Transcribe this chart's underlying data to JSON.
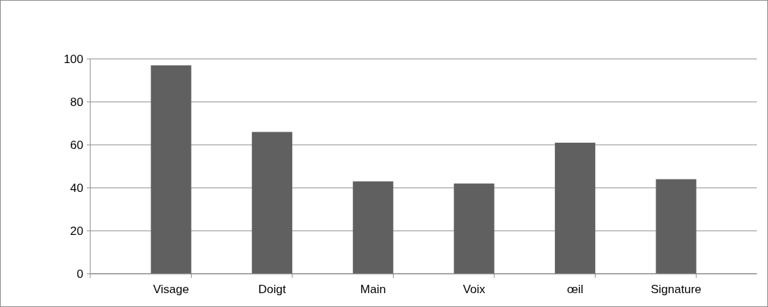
{
  "chart_data": {
    "type": "bar",
    "categories": [
      "Visage",
      "Doigt",
      "Main",
      "Voix",
      "œil",
      "Signature"
    ],
    "values": [
      97,
      66,
      43,
      42,
      61,
      44
    ],
    "color": "#606060",
    "ylim": [
      0,
      100
    ],
    "yticks": [
      0,
      20,
      40,
      60,
      80,
      100
    ],
    "grid": "y"
  }
}
